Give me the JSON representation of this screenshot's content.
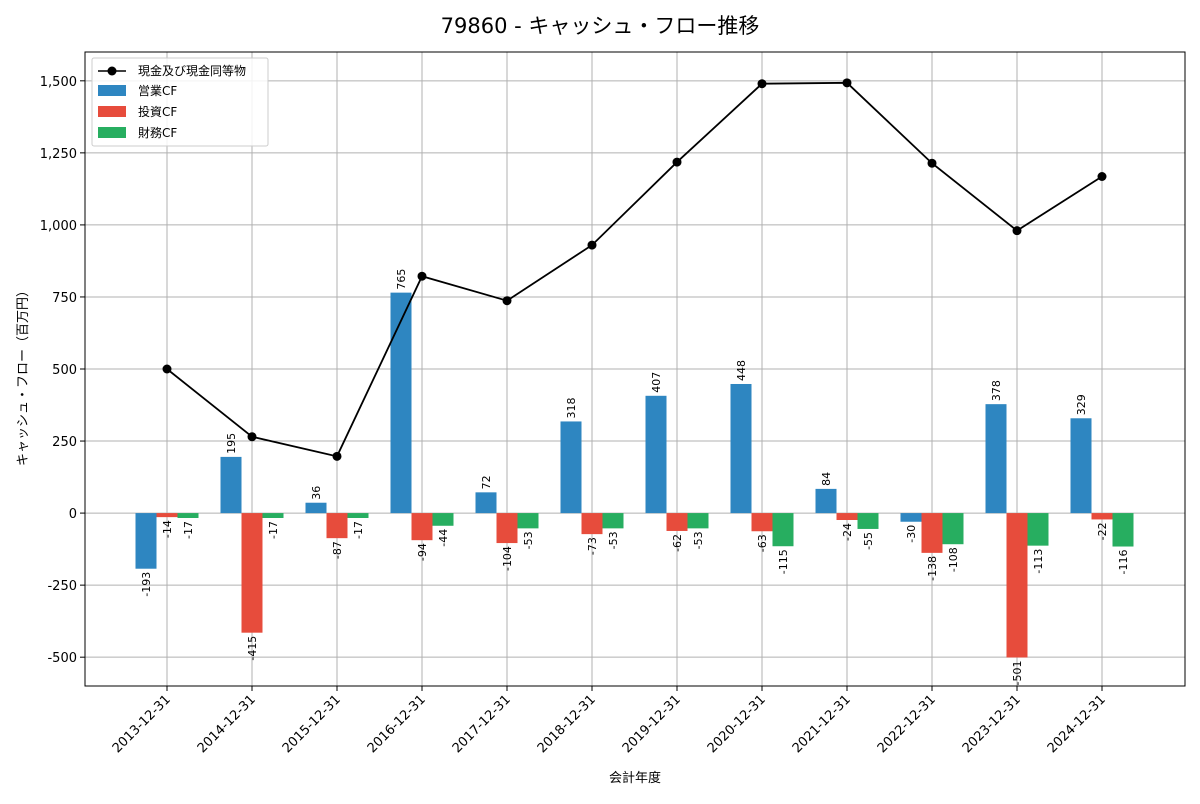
{
  "chart_data": {
    "type": "bar",
    "title": "79860 - キャッシュ・フロー推移",
    "xlabel": "会計年度",
    "ylabel": "キャッシュ・フロー（百万円）",
    "ylim": [
      -600,
      1600
    ],
    "yticks": [
      -500,
      -250,
      0,
      250,
      500,
      750,
      1000,
      1250,
      1500
    ],
    "ytick_labels": [
      "-500",
      "-250",
      "0",
      "250",
      "500",
      "750",
      "1,000",
      "1,250",
      "1,500"
    ],
    "grid": true,
    "legend_position": "top-left",
    "categories": [
      "2013-12-31",
      "2014-12-31",
      "2015-12-31",
      "2016-12-31",
      "2017-12-31",
      "2018-12-31",
      "2019-12-31",
      "2020-12-31",
      "2021-12-31",
      "2022-12-31",
      "2023-12-31",
      "2024-12-31"
    ],
    "line_series": {
      "name": "現金及び現金同等物",
      "color": "#000000",
      "values": [
        500,
        265,
        197,
        822,
        737,
        930,
        1218,
        1490,
        1493,
        1214,
        980,
        1168
      ]
    },
    "series": [
      {
        "name": "営業CF",
        "color": "#2e86c1",
        "values": [
          -193,
          195,
          36,
          765,
          72,
          318,
          407,
          448,
          84,
          -30,
          378,
          329
        ]
      },
      {
        "name": "投資CF",
        "color": "#e74c3c",
        "values": [
          -14,
          -415,
          -87,
          -94,
          -104,
          -73,
          -62,
          -63,
          -24,
          -138,
          -501,
          -22
        ]
      },
      {
        "name": "財務CF",
        "color": "#27ae60",
        "values": [
          -17,
          -17,
          -17,
          -44,
          -53,
          -53,
          -53,
          -115,
          -55,
          -108,
          -113,
          -116
        ]
      }
    ]
  }
}
